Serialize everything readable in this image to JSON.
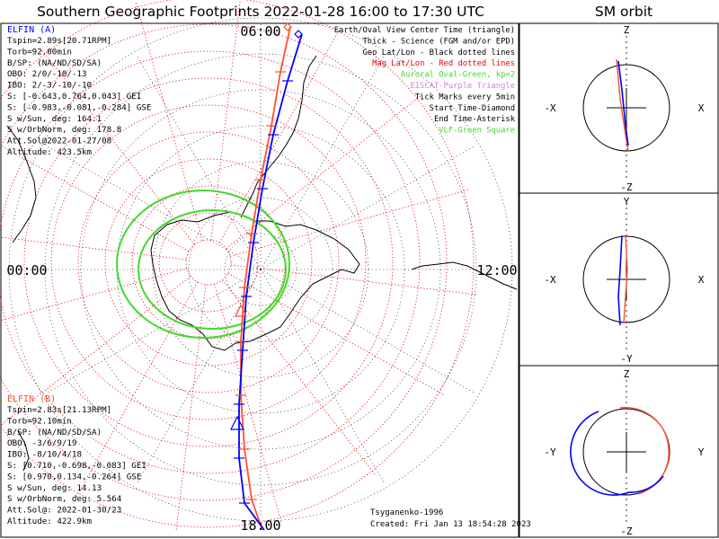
{
  "header": {
    "title": "Southern Geographic Footprints 2022-01-28 16:00 to 17:30 UTC",
    "sm_title": "SM orbit"
  },
  "map": {
    "hour_labels": {
      "top": "06:00",
      "left": "00:00",
      "right": "12:00",
      "bottom": "18:00"
    }
  },
  "legend": {
    "lines": [
      {
        "text": "Earth/Oval View Center Time (triangle)",
        "color": "#000000"
      },
      {
        "text": "Thick - Science (FGM and/or EPD)",
        "color": "#000000"
      },
      {
        "text": "Geo Lat/Lon - Black dotted lines",
        "color": "#000000"
      },
      {
        "text": "Mag Lat/Lon - Red dotted lines",
        "color": "#e8000b"
      },
      {
        "text": "Auroral Oval-Green, kp=2",
        "color": "#44d82c"
      },
      {
        "text": "EISCAT-Purple Triangle",
        "color": "#d87be8"
      },
      {
        "text": "Tick Marks every 5min",
        "color": "#000000"
      },
      {
        "text": "Start Time-Diamond",
        "color": "#000000"
      },
      {
        "text": "End Time-Asterisk",
        "color": "#000000"
      },
      {
        "text": "VLF-Green Square",
        "color": "#44d82c"
      }
    ]
  },
  "elfin_a": {
    "name": "ELFIN (A)",
    "color": "#0000ff",
    "lines": [
      "Tspin=2.89s[20.71RPM]",
      "Torb=92.00min",
      "B/SP: (NA/ND/SD/SA)",
      "OBO: 2/0/-10/-13",
      "IBO: 2/-3/-10/-10",
      "S: [-0.643,0.764,0.043] GEI",
      "S: [-0.983,-0.081,-0.284] GSE",
      "S w/Sun, deg: 164.1",
      "S w/OrbNorm, deg: 178.8",
      "Att.Sol@2022-01-27/08",
      "Altitude: 423.5km"
    ]
  },
  "elfin_b": {
    "name": "ELFIN (B)",
    "color": "#ff5030",
    "lines": [
      "Tspin=2.83s[21.13RPM]",
      "Torb=92.10min",
      "B/SP: (NA/ND/SD/SA)",
      "OBO: -3/6/9/19",
      "IBO: -8/10/4/18",
      "S: [0.710,-0.698,-0.083] GEI",
      "S: [0.970,0.134,-0.264] GSE",
      "S w/Sun, deg: 14.13",
      "S w/OrbNorm, deg: 5.564",
      "Att.Sol@: 2022-01-30/23",
      "Altitude: 422.9km"
    ]
  },
  "footer": {
    "model": "Tsyganenko-1996",
    "created": "Created: Fri Jan 13 18:54:28 2023"
  },
  "sm_panels": [
    {
      "top": "Z",
      "bottom": "-Z",
      "left": "-X",
      "right": "X"
    },
    {
      "top": "Y",
      "bottom": "-Y",
      "left": "-X",
      "right": "X"
    },
    {
      "top": "Z",
      "bottom": "-Z",
      "left": "-Y",
      "right": "Y"
    }
  ],
  "colors": {
    "elfin_a_track": "#0000ff",
    "elfin_b_track": "#ff5030",
    "geo_grid": "#000000",
    "mag_grid": "#e8000b",
    "auroral_oval": "#44d82c",
    "coastline": "#000000"
  },
  "chart_data": {
    "type": "polar-map",
    "title": "Southern Geographic Footprints 2022-01-28 16:00 to 17:30 UTC",
    "hour_labels": [
      "00:00",
      "06:00",
      "12:00",
      "18:00"
    ],
    "series": [
      {
        "name": "ELFIN (A)",
        "color": "#0000ff"
      },
      {
        "name": "ELFIN (B)",
        "color": "#ff5030"
      }
    ],
    "auroral_oval_kp": 2
  }
}
